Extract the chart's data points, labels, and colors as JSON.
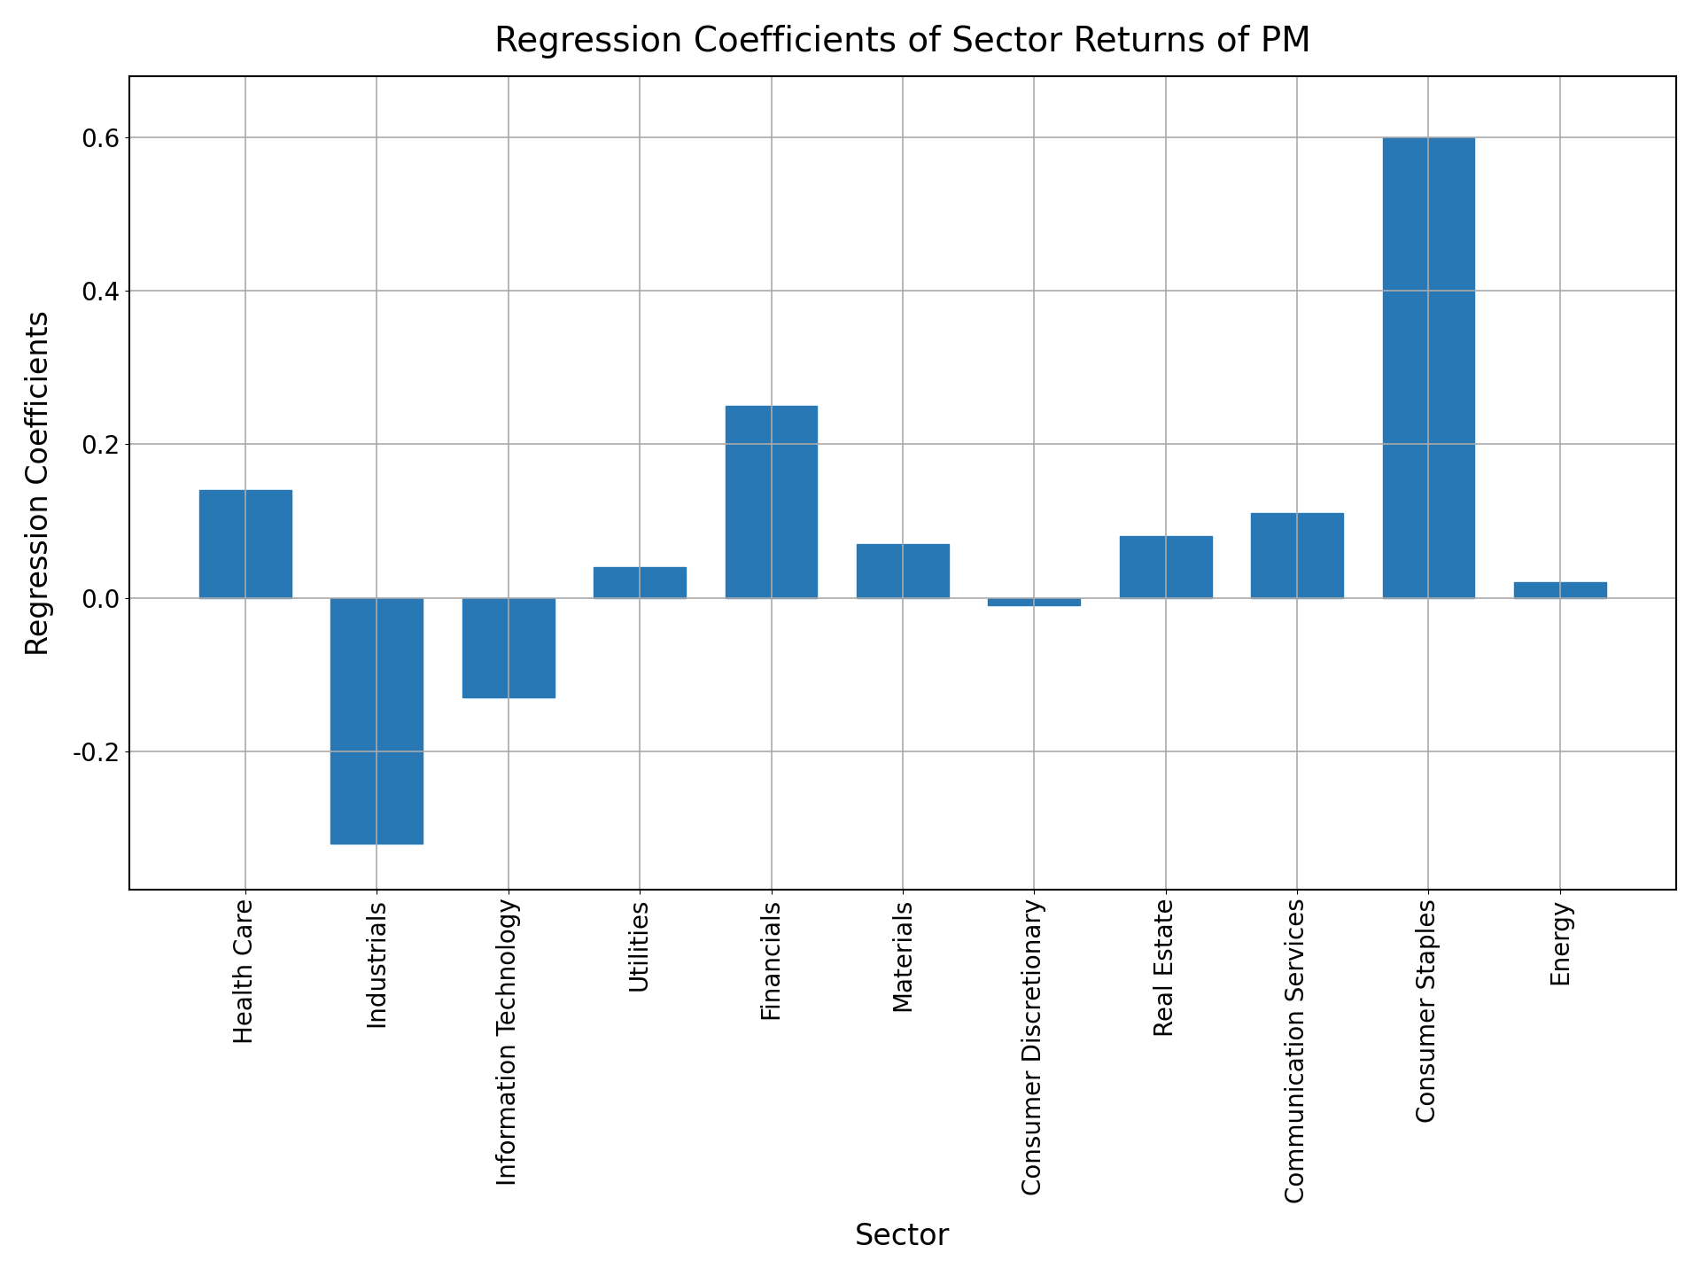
{
  "categories": [
    "Health Care",
    "Industrials",
    "Information Technology",
    "Utilities",
    "Financials",
    "Materials",
    "Consumer Discretionary",
    "Real Estate",
    "Communication Services",
    "Consumer Staples",
    "Energy"
  ],
  "values": [
    0.14,
    -0.32,
    -0.13,
    0.04,
    0.25,
    0.07,
    -0.01,
    0.08,
    0.11,
    0.6,
    0.02
  ],
  "bar_color": "#2878b5",
  "title": "Regression Coefficients of Sector Returns of PM",
  "xlabel": "Sector",
  "ylabel": "Regression Coefficients",
  "title_fontsize": 28,
  "label_fontsize": 24,
  "tick_fontsize": 20,
  "ylim": [
    -0.38,
    0.68
  ],
  "yticks": [
    -0.2,
    0.0,
    0.2,
    0.4,
    0.6
  ],
  "grid": true,
  "background_color": "#ffffff",
  "bar_width": 0.7,
  "grid_color": "#aaaaaa",
  "grid_linewidth": 1.2
}
